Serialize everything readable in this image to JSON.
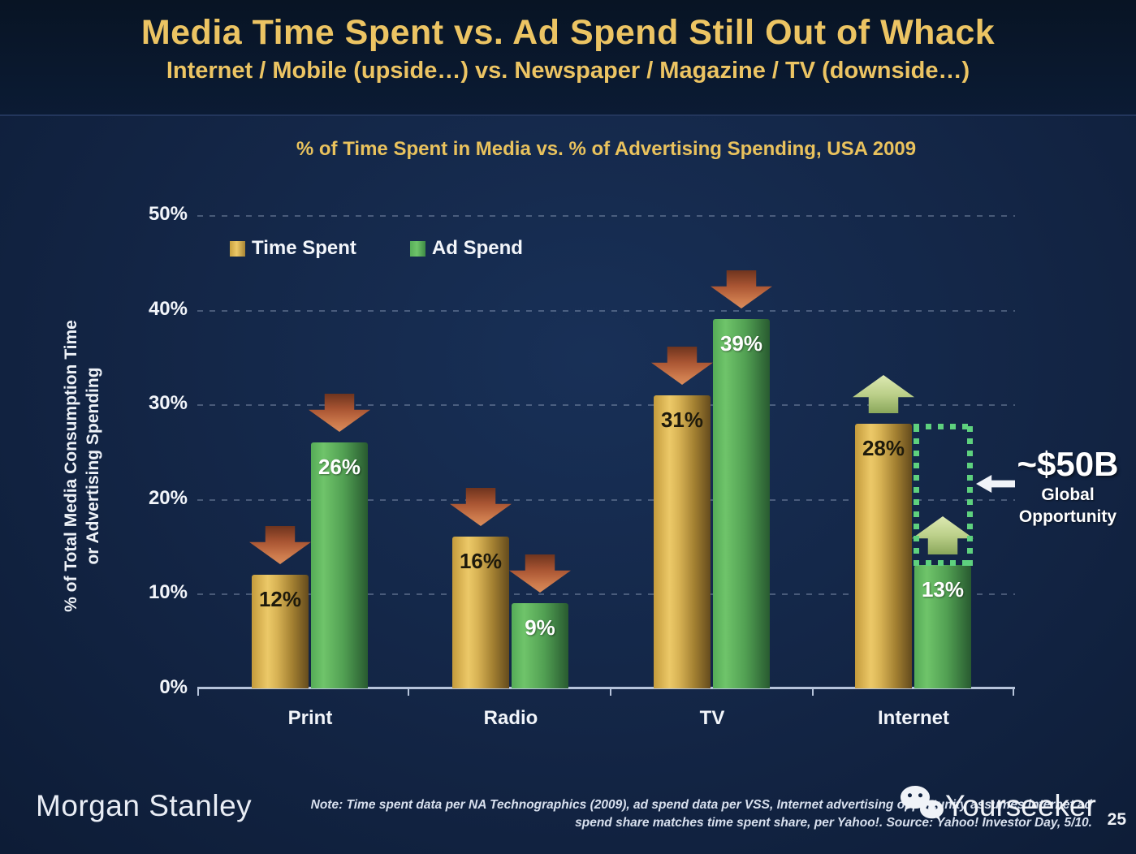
{
  "slide": {
    "title": "Media Time Spent vs. Ad Spend Still Out of Whack",
    "subtitle": "Internet / Mobile (upside…) vs. Newspaper / Magazine / TV (downside…)"
  },
  "chart_data": {
    "type": "bar",
    "title": "% of Time Spent in Media vs. % of Advertising Spending, USA 2009",
    "ylabel_line1": "% of Total Media Consumption Time",
    "ylabel_line2": "or Advertising Spending",
    "categories": [
      "Print",
      "Radio",
      "TV",
      "Internet"
    ],
    "series": [
      {
        "name": "Time Spent",
        "color_key": "gold",
        "values": [
          12,
          16,
          31,
          28
        ],
        "trend": [
          "down",
          "down",
          "down",
          "up"
        ]
      },
      {
        "name": "Ad Spend",
        "color_key": "green",
        "values": [
          26,
          9,
          39,
          13
        ],
        "trend": [
          "down",
          "down",
          "down",
          "up"
        ]
      }
    ],
    "y_ticks": [
      "0%",
      "10%",
      "20%",
      "30%",
      "40%",
      "50%"
    ],
    "ylim": [
      0,
      50
    ],
    "grid": "dashed horizontal gridlines at 10% steps",
    "legend_position": "top-left inside plot",
    "opportunity_box": {
      "category_index": 3,
      "top_value": 28,
      "bottom_value": 13
    }
  },
  "annotation": {
    "value": "~$50B",
    "line1": "Global",
    "line2": "Opportunity"
  },
  "footer": {
    "brand": "Morgan Stanley",
    "note_line1": "Note: Time spent data per NA Technographics (2009), ad spend data per VSS, Internet advertising opportunity assumes internet ad",
    "note_line2": "spend share matches time spent share, per Yahoo!. Source: Yahoo! Investor Day, 5/10.",
    "page": "25"
  },
  "watermark": {
    "text": "Yourseeker"
  },
  "colors": {
    "background": "#132545",
    "header_background": "#0b1b34",
    "title_gold": "#ecc463",
    "bar_gold": "#d7b254",
    "bar_green": "#5fb35e",
    "arrow_down_red": "#c0663e",
    "arrow_up_green": "#bcd08a",
    "dotted_green": "#5ed17e",
    "text_white": "#f2f5fa"
  }
}
